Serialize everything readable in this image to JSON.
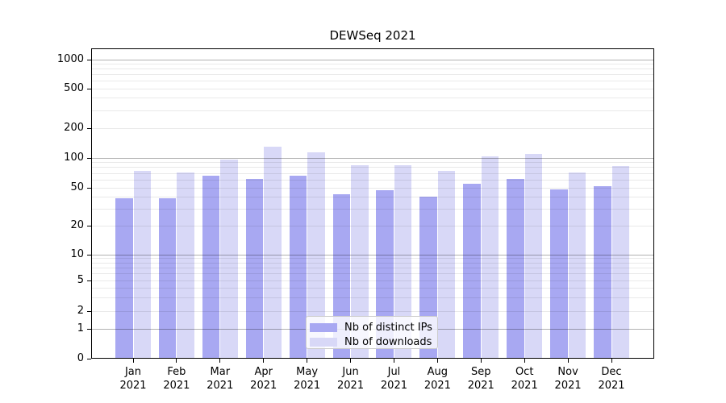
{
  "chart_data": {
    "type": "bar",
    "title": "DEWSeq 2021",
    "year_label": "2021",
    "categories": [
      "Jan",
      "Feb",
      "Mar",
      "Apr",
      "May",
      "Jun",
      "Jul",
      "Aug",
      "Sep",
      "Oct",
      "Nov",
      "Dec"
    ],
    "series": [
      {
        "name": "Nb of distinct IPs",
        "color": "#a8a8f2",
        "values": [
          39,
          39,
          66,
          61,
          66,
          43,
          47,
          40,
          55,
          61,
          48,
          52
        ]
      },
      {
        "name": "Nb of downloads",
        "color": "#d8d8f7",
        "values": [
          74,
          72,
          97,
          130,
          115,
          85,
          85,
          74,
          104,
          110,
          71,
          83
        ]
      }
    ],
    "y_axis": {
      "scale": "symlog",
      "ticks": [
        0,
        1,
        2,
        5,
        10,
        20,
        50,
        100,
        200,
        500,
        1000
      ],
      "major_gridlines": [
        1,
        10,
        100,
        1000
      ],
      "minor_gridlines": [
        2,
        3,
        4,
        5,
        6,
        7,
        8,
        9,
        20,
        30,
        40,
        50,
        60,
        70,
        80,
        90,
        200,
        300,
        400,
        500,
        600,
        700,
        800,
        900
      ],
      "range": [
        0,
        1200
      ]
    },
    "legend": {
      "position": "bottom-center",
      "entries": [
        "Nb of distinct IPs",
        "Nb of downloads"
      ]
    },
    "colors": {
      "background": "#ffffff",
      "axis": "#000000",
      "major_grid": "#b3b3b3",
      "minor_grid": "#ebebeb"
    }
  }
}
